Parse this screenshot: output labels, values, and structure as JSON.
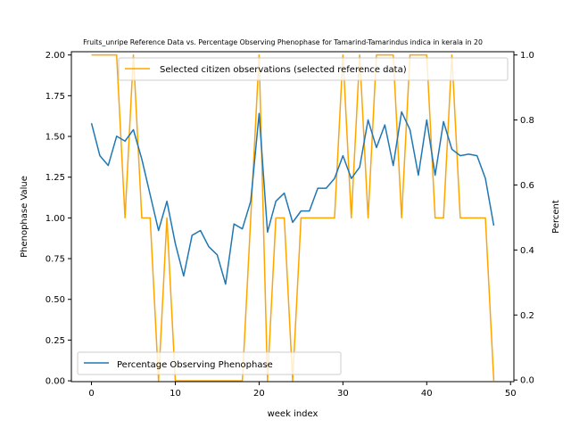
{
  "chart_data": {
    "type": "line",
    "title": "Fruits_unripe Reference Data vs. Percentage Observing Phenophase for Tamarind-Tamarindus indica in kerala in 20",
    "xlabel": "week index",
    "ylabel_left": "Phenophase Value",
    "ylabel_right": "Percent",
    "xlim": [
      -2.4,
      50.4
    ],
    "ylim_left": [
      -0.005,
      2.02
    ],
    "ylim_right": [
      -0.005,
      1.01
    ],
    "x_ticks": [
      0,
      10,
      20,
      30,
      40,
      50
    ],
    "y_ticks_left": [
      0.0,
      0.25,
      0.5,
      0.75,
      1.0,
      1.25,
      1.5,
      1.75,
      2.0
    ],
    "y_ticks_right": [
      0.0,
      0.2,
      0.4,
      0.6,
      0.8,
      1.0
    ],
    "x_tick_labels": [
      "0",
      "10",
      "20",
      "30",
      "40",
      "50"
    ],
    "y_tick_labels_left": [
      "0.00",
      "0.25",
      "0.50",
      "0.75",
      "1.00",
      "1.25",
      "1.50",
      "1.75",
      "2.00"
    ],
    "y_tick_labels_right": [
      "0.0",
      "0.2",
      "0.4",
      "0.6",
      "0.8",
      "1.0"
    ],
    "series": [
      {
        "name": "Selected citizen observations (selected reference data)",
        "axis": "left",
        "color": "#ffa500",
        "x": [
          0,
          1,
          2,
          3,
          4,
          5,
          6,
          7,
          8,
          9,
          10,
          11,
          12,
          13,
          14,
          15,
          16,
          17,
          18,
          19,
          20,
          21,
          22,
          23,
          24,
          25,
          26,
          27,
          28,
          29,
          30,
          31,
          32,
          33,
          34,
          35,
          36,
          37,
          38,
          39,
          40,
          41,
          42,
          43,
          44,
          45,
          46,
          47,
          48
        ],
        "values": [
          2,
          2,
          2,
          2,
          1,
          2,
          1,
          1,
          0,
          1,
          0,
          0,
          0,
          0,
          0,
          0,
          0,
          0,
          0,
          1,
          2,
          0,
          1,
          1,
          0,
          1,
          1,
          1,
          1,
          1,
          2,
          1,
          2,
          1,
          2,
          2,
          2,
          1,
          2,
          2,
          2,
          1,
          1,
          2,
          1,
          1,
          1,
          1,
          0
        ]
      },
      {
        "name": "Percentage Observing Phenophase",
        "axis": "right",
        "color": "#1f77b4",
        "x": [
          0,
          1,
          2,
          3,
          4,
          5,
          6,
          7,
          8,
          9,
          10,
          11,
          12,
          13,
          14,
          15,
          16,
          17,
          18,
          19,
          20,
          21,
          22,
          23,
          24,
          25,
          26,
          27,
          28,
          29,
          30,
          31,
          32,
          33,
          34,
          35,
          36,
          37,
          38,
          39,
          40,
          41,
          42,
          43,
          44,
          45,
          46,
          47,
          48
        ],
        "values": [
          0.79,
          0.69,
          0.66,
          0.75,
          0.735,
          0.77,
          0.68,
          0.57,
          0.46,
          0.55,
          0.42,
          0.32,
          0.445,
          0.46,
          0.41,
          0.385,
          0.295,
          0.48,
          0.465,
          0.55,
          0.82,
          0.455,
          0.55,
          0.575,
          0.485,
          0.52,
          0.52,
          0.59,
          0.59,
          0.62,
          0.69,
          0.62,
          0.655,
          0.8,
          0.715,
          0.785,
          0.66,
          0.825,
          0.77,
          0.63,
          0.8,
          0.63,
          0.795,
          0.71,
          0.69,
          0.695,
          0.69,
          0.62,
          0.475
        ]
      }
    ],
    "legend_upper": {
      "placement": "top-right",
      "entries": [
        "Selected citizen observations (selected reference data)"
      ]
    },
    "legend_lower": {
      "placement": "bottom-left",
      "entries": [
        "Percentage Observing Phenophase"
      ]
    },
    "grid": false
  }
}
